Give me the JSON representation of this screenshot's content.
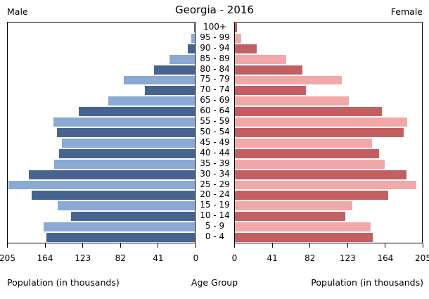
{
  "header": {
    "title": "Georgia - 2016",
    "left_label": "Male",
    "right_label": "Female"
  },
  "footer": {
    "left_axis_label": "Population (in thousands)",
    "center_axis_label": "Age Group",
    "right_axis_label": "Population (in thousands)"
  },
  "chart_data": {
    "type": "bar",
    "subtype": "population-pyramid",
    "title": "Georgia - 2016",
    "xlabel": "Population (in thousands)",
    "center_label": "Age Group",
    "grid": false,
    "axis_max": 205,
    "ticks_left": [
      205,
      164,
      123,
      82,
      41,
      0
    ],
    "ticks_right": [
      0,
      41,
      82,
      123,
      164,
      205
    ],
    "age_groups": [
      "100+",
      "95 - 99",
      "90 - 94",
      "85 - 89",
      "80 - 84",
      "75 - 79",
      "70 - 74",
      "65 - 69",
      "60 - 64",
      "55 - 59",
      "50 - 54",
      "45 - 49",
      "40 - 44",
      "35 - 39",
      "30 - 34",
      "25 - 29",
      "20 - 24",
      "15 - 19",
      "10 - 14",
      "5 - 9",
      "0 - 4"
    ],
    "series": [
      {
        "name": "Male",
        "side": "left",
        "values": [
          1,
          4,
          8,
          28,
          45,
          78,
          55,
          95,
          127,
          155,
          151,
          146,
          149,
          154,
          182,
          204,
          179,
          150,
          136,
          166,
          163
        ]
      },
      {
        "name": "Female",
        "side": "right",
        "values": [
          2,
          7,
          24,
          56,
          74,
          117,
          78,
          125,
          161,
          189,
          185,
          150,
          158,
          164,
          188,
          199,
          168,
          129,
          121,
          149,
          151
        ]
      }
    ],
    "colors": {
      "male_dark": "#46648f",
      "male_light": "#8aa9d3",
      "female_dark": "#c35f62",
      "female_light": "#f1a8a9",
      "axis": "#000000",
      "background": "#ffffff"
    }
  }
}
